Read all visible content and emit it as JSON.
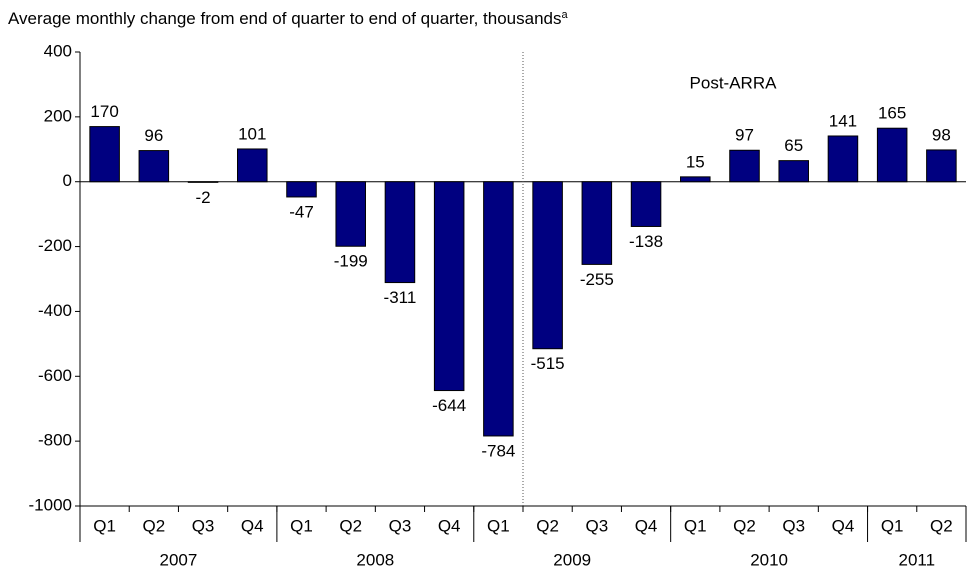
{
  "chart_data": {
    "type": "bar",
    "title": "Average monthly change from end of quarter to end of quarter, thousands",
    "title_note_marker": "a",
    "annotation": "Post-ARRA",
    "categories": [
      "Q1",
      "Q2",
      "Q3",
      "Q4",
      "Q1",
      "Q2",
      "Q3",
      "Q4",
      "Q1",
      "Q2",
      "Q3",
      "Q4",
      "Q1",
      "Q2",
      "Q3",
      "Q4",
      "Q1",
      "Q2"
    ],
    "groups": [
      {
        "label": "2007",
        "span": 4
      },
      {
        "label": "2008",
        "span": 4
      },
      {
        "label": "2009",
        "span": 4
      },
      {
        "label": "2010",
        "span": 4
      },
      {
        "label": "2011",
        "span": 2
      }
    ],
    "values": [
      170,
      96,
      -2,
      101,
      -47,
      -199,
      -311,
      -644,
      -784,
      -515,
      -255,
      -138,
      15,
      97,
      65,
      141,
      165,
      98
    ],
    "color": "#000080",
    "ylim": [
      -1000,
      400
    ],
    "yticks": [
      -1000,
      -800,
      -600,
      -400,
      -200,
      0,
      200,
      400
    ],
    "grid": false
  }
}
